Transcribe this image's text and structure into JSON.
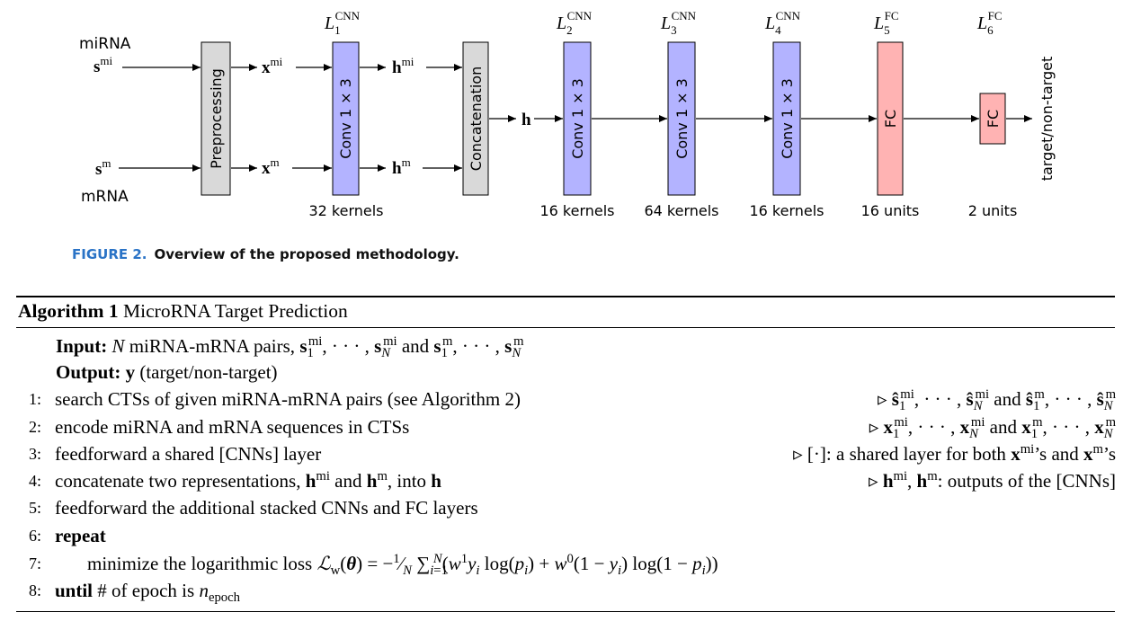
{
  "figure": {
    "inputs": {
      "mirna_label": "miRNA",
      "mrna_label": "mRNA",
      "s_mi": "s",
      "s_mi_sup": "mi",
      "s_m": "s",
      "s_m_sup": "m"
    },
    "blocks": {
      "preprocessing": "Preprocessing",
      "conv1": "Conv 1 × 3",
      "concatenation": "Concatenation",
      "conv2": "Conv 1 × 3",
      "conv3": "Conv 1 × 3",
      "conv4": "Conv 1 × 3",
      "fc5": "FC",
      "fc6": "FC"
    },
    "signals": {
      "x_mi": "x",
      "x_mi_sup": "mi",
      "x_m": "x",
      "x_m_sup": "m",
      "h_mi": "h",
      "h_mi_sup": "mi",
      "h_m": "h",
      "h_m_sup": "m",
      "h": "h"
    },
    "layer_labels": [
      {
        "base": "L",
        "sub": "1",
        "sup": "CNN"
      },
      {
        "base": "L",
        "sub": "2",
        "sup": "CNN"
      },
      {
        "base": "L",
        "sub": "3",
        "sup": "CNN"
      },
      {
        "base": "L",
        "sub": "4",
        "sup": "CNN"
      },
      {
        "base": "L",
        "sub": "5",
        "sup": "FC"
      },
      {
        "base": "L",
        "sub": "6",
        "sup": "FC"
      }
    ],
    "units_labels": [
      "32 kernels",
      "16 kernels",
      "64 kernels",
      "16 kernels",
      "16 units",
      "2 units"
    ],
    "output_label": "target/non-target",
    "caption_number": "FIGURE 2.",
    "caption_text": "Overview of the proposed methodology.",
    "colors": {
      "gray_box": "#d9d9d9",
      "conv_box": "#b3b3ff",
      "fc_box": "#ffb3b3",
      "caption_blue": "#2a73c6"
    }
  },
  "algorithm": {
    "title_bold": "Algorithm 1",
    "title_text": "MicroRNA Target Prediction",
    "input_kw": "Input:",
    "input_N": "N",
    "input_text": "miRNA-mRNA pairs,",
    "output_kw": "Output:",
    "output_y": "y",
    "output_text": "(target/non-target)",
    "lines": [
      {
        "num": "1:",
        "text": "search CTSs of given miRNA-mRNA pairs (see Algorithm 2)"
      },
      {
        "num": "2:",
        "text": "encode miRNA and mRNA sequences in CTSs"
      },
      {
        "num": "3:",
        "text": "feedforward a shared [CNNs] layer"
      },
      {
        "num": "4:",
        "text": "concatenate two representations,"
      },
      {
        "num": "5:",
        "text": "feedforward the additional stacked CNNs and FC layers"
      },
      {
        "num": "6:",
        "text": "repeat"
      },
      {
        "num": "7:",
        "text": "minimize the logarithmic loss"
      },
      {
        "num": "8:",
        "text": "until"
      }
    ],
    "line3_comment": ": a shared layer for both",
    "line4_comment": ": outputs of the [CNNs]",
    "line8_text": "# of epoch is",
    "and_word": "and",
    "into_word": "into"
  }
}
